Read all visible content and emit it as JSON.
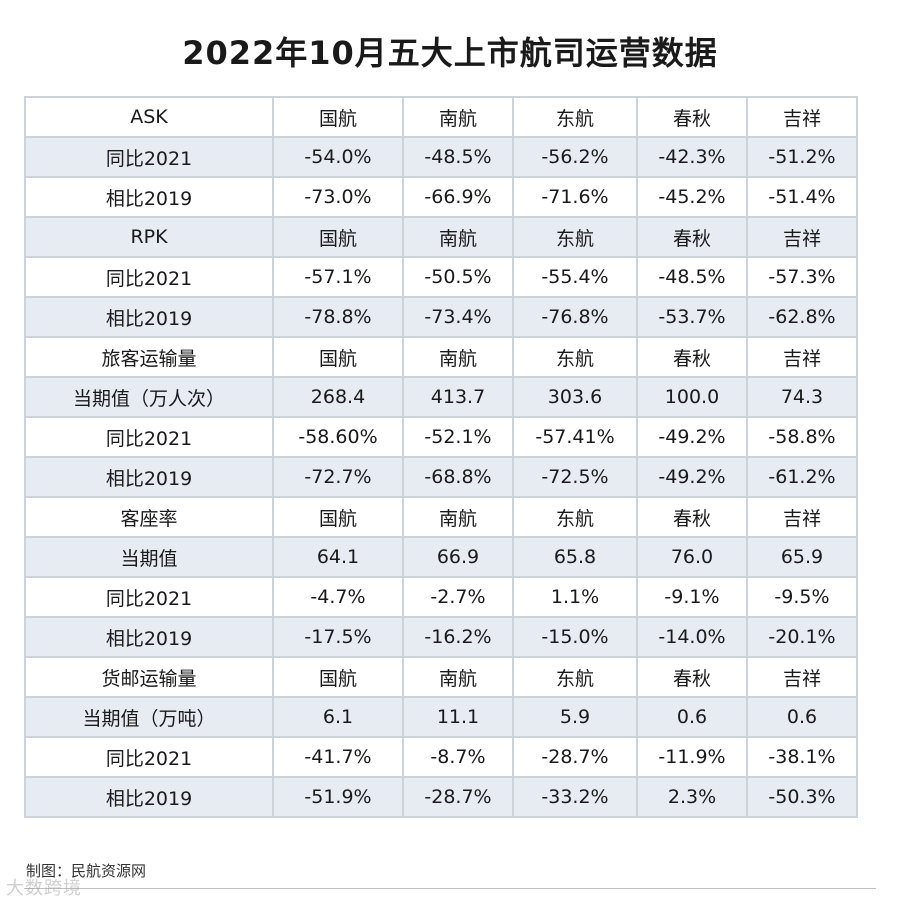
{
  "title": "2022年10月五大上市航司运营数据",
  "table": {
    "rows": [
      [
        "ASK",
        "国航",
        "南航",
        "东航",
        "春秋",
        "吉祥"
      ],
      [
        "同比2021",
        "-54.0%",
        "-48.5%",
        "-56.2%",
        "-42.3%",
        "-51.2%"
      ],
      [
        "相比2019",
        "-73.0%",
        "-66.9%",
        "-71.6%",
        "-45.2%",
        "-51.4%"
      ],
      [
        "RPK",
        "国航",
        "南航",
        "东航",
        "春秋",
        "吉祥"
      ],
      [
        "同比2021",
        "-57.1%",
        "-50.5%",
        "-55.4%",
        "-48.5%",
        "-57.3%"
      ],
      [
        "相比2019",
        "-78.8%",
        "-73.4%",
        "-76.8%",
        "-53.7%",
        "-62.8%"
      ],
      [
        "旅客运输量",
        "国航",
        "南航",
        "东航",
        "春秋",
        "吉祥"
      ],
      [
        "当期值（万人次）",
        "268.4",
        "413.7",
        "303.6",
        "100.0",
        "74.3"
      ],
      [
        "同比2021",
        "-58.60%",
        "-52.1%",
        "-57.41%",
        "-49.2%",
        "-58.8%"
      ],
      [
        "相比2019",
        "-72.7%",
        "-68.8%",
        "-72.5%",
        "-49.2%",
        "-61.2%"
      ],
      [
        "客座率",
        "国航",
        "南航",
        "东航",
        "春秋",
        "吉祥"
      ],
      [
        "当期值",
        "64.1",
        "66.9",
        "65.8",
        "76.0",
        "65.9"
      ],
      [
        "同比2021",
        "-4.7%",
        "-2.7%",
        "1.1%",
        "-9.1%",
        "-9.5%"
      ],
      [
        "相比2019",
        "-17.5%",
        "-16.2%",
        "-15.0%",
        "-14.0%",
        "-20.1%"
      ],
      [
        "货邮运输量",
        "国航",
        "南航",
        "东航",
        "春秋",
        "吉祥"
      ],
      [
        "当期值（万吨）",
        "6.1",
        "11.1",
        "5.9",
        "0.6",
        "0.6"
      ],
      [
        "同比2021",
        "-41.7%",
        "-8.7%",
        "-28.7%",
        "-11.9%",
        "-38.1%"
      ],
      [
        "相比2019",
        "-51.9%",
        "-28.7%",
        "-33.2%",
        "2.3%",
        "-50.3%"
      ]
    ]
  },
  "credit": "制图：民航资源网",
  "watermark": "大数跨境",
  "colors": {
    "shade": "#e7ebf2",
    "border": "#cdd3dc",
    "text": "#1a1a1a"
  }
}
